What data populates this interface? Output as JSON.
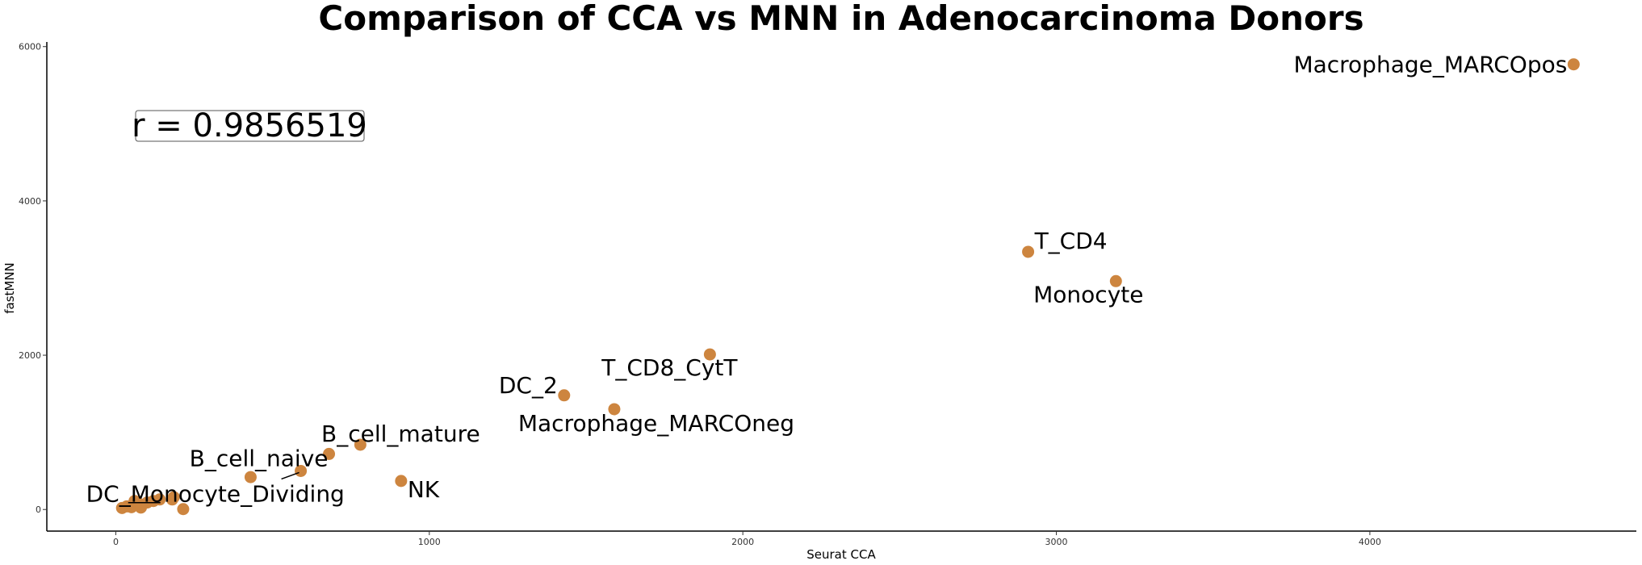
{
  "chart_data": {
    "type": "scatter",
    "title": "Comparison of CCA vs MNN in Adenocarcinoma Donors",
    "xlabel": "Seurat CCA",
    "ylabel": "fastMNN",
    "xlim": [
      -220,
      4850
    ],
    "ylim": [
      -280,
      6060
    ],
    "x_ticks": [
      0,
      1000,
      2000,
      3000,
      4000
    ],
    "y_ticks": [
      0,
      2000,
      4000,
      6000
    ],
    "grid": false,
    "point_color": "#CD853F",
    "annotation": "r = 0.9856519",
    "points": [
      {
        "x": 4650,
        "y": 5770,
        "label": "Macrophage_MARCOpos"
      },
      {
        "x": 2910,
        "y": 3340,
        "label": "T_CD4"
      },
      {
        "x": 3190,
        "y": 2960,
        "label": "Monocyte"
      },
      {
        "x": 1895,
        "y": 2010,
        "label": "T_CD8_CytT"
      },
      {
        "x": 1430,
        "y": 1480,
        "label": "DC_2"
      },
      {
        "x": 1590,
        "y": 1300,
        "label": "Macrophage_MARCOneg"
      },
      {
        "x": 780,
        "y": 840,
        "label": "B_cell_mature"
      },
      {
        "x": 680,
        "y": 720,
        "label": ""
      },
      {
        "x": 430,
        "y": 420,
        "label": ""
      },
      {
        "x": 590,
        "y": 500,
        "label": "B_cell_naive"
      },
      {
        "x": 910,
        "y": 370,
        "label": "NK"
      },
      {
        "x": 60,
        "y": 110,
        "label": "DC_Monocyte_Dividing"
      },
      {
        "x": 20,
        "y": 20,
        "label": ""
      },
      {
        "x": 35,
        "y": 40,
        "label": ""
      },
      {
        "x": 50,
        "y": 30,
        "label": ""
      },
      {
        "x": 75,
        "y": 70,
        "label": ""
      },
      {
        "x": 80,
        "y": 25,
        "label": ""
      },
      {
        "x": 100,
        "y": 90,
        "label": ""
      },
      {
        "x": 120,
        "y": 110,
        "label": ""
      },
      {
        "x": 140,
        "y": 130,
        "label": ""
      },
      {
        "x": 185,
        "y": 160,
        "label": ""
      },
      {
        "x": 180,
        "y": 130,
        "label": ""
      },
      {
        "x": 215,
        "y": 5,
        "label": ""
      }
    ]
  }
}
